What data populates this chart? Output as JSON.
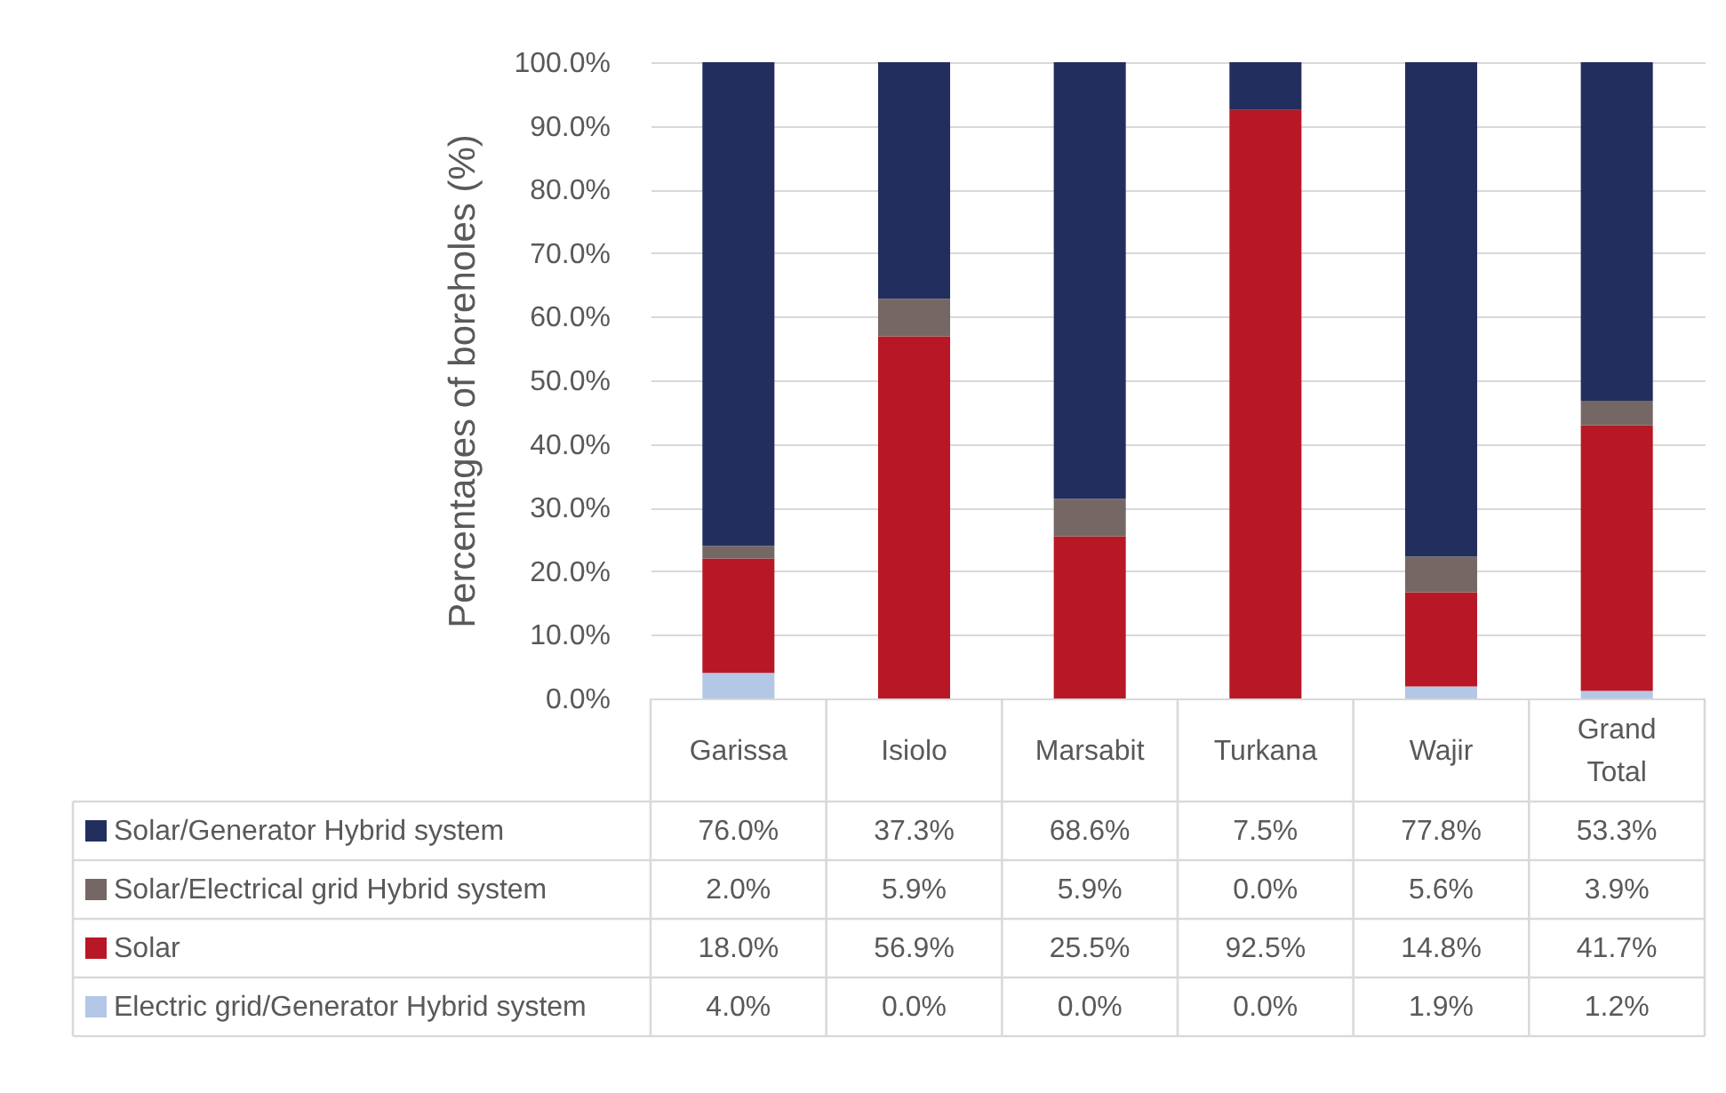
{
  "chart_data": {
    "type": "bar",
    "stacked": true,
    "ylabel": "Percentages of boreholes (%)",
    "categories": [
      "Garissa",
      "Isiolo",
      "Marsabit",
      "Turkana",
      "Wajir",
      "Grand Total"
    ],
    "series": [
      {
        "name": "Electric grid/Generator Hybrid system",
        "color": "#b4c7e7",
        "values": [
          4.0,
          0.0,
          0.0,
          0.0,
          1.9,
          1.2
        ],
        "value_labels": [
          "4.0%",
          "0.0%",
          "0.0%",
          "0.0%",
          "1.9%",
          "1.2%"
        ]
      },
      {
        "name": "Solar",
        "color": "#b81825",
        "values": [
          18.0,
          56.9,
          25.5,
          92.5,
          14.8,
          41.7
        ],
        "value_labels": [
          "18.0%",
          "56.9%",
          "25.5%",
          "92.5%",
          "14.8%",
          "41.7%"
        ]
      },
      {
        "name": "Solar/Electrical grid Hybrid system",
        "color": "#756864",
        "values": [
          2.0,
          5.9,
          5.9,
          0.0,
          5.6,
          3.9
        ],
        "value_labels": [
          "2.0%",
          "5.9%",
          "5.9%",
          "0.0%",
          "5.6%",
          "3.9%"
        ]
      },
      {
        "name": "Solar/Generator Hybrid system",
        "color": "#222f5e",
        "values": [
          76.0,
          37.3,
          68.6,
          7.5,
          77.8,
          53.3
        ],
        "value_labels": [
          "76.0%",
          "37.3%",
          "68.6%",
          "7.5%",
          "77.8%",
          "53.3%"
        ]
      }
    ],
    "ylim": [
      0,
      100
    ],
    "yticks": [
      {
        "value": 0,
        "label": "0.0%"
      },
      {
        "value": 10,
        "label": "10.0%"
      },
      {
        "value": 20,
        "label": "20.0%"
      },
      {
        "value": 30,
        "label": "30.0%"
      },
      {
        "value": 40,
        "label": "40.0%"
      },
      {
        "value": 50,
        "label": "50.0%"
      },
      {
        "value": 60,
        "label": "60.0%"
      },
      {
        "value": 70,
        "label": "70.0%"
      },
      {
        "value": 80,
        "label": "80.0%"
      },
      {
        "value": 90,
        "label": "90.0%"
      },
      {
        "value": 100,
        "label": "100.0%"
      }
    ],
    "grid": "y",
    "legend": "bottom"
  }
}
